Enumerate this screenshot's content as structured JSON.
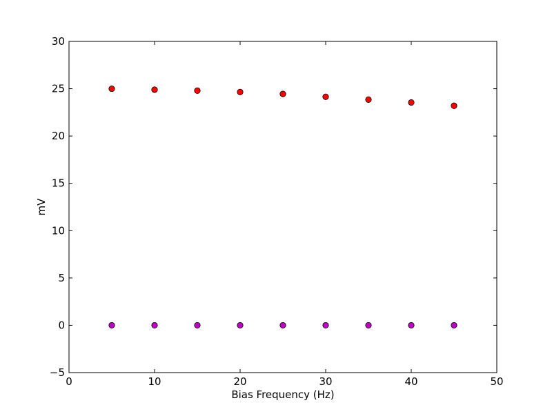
{
  "chart_data": {
    "type": "scatter",
    "title": "",
    "xlabel": "Bias Frequency (Hz)",
    "ylabel": "mV",
    "xlim": [
      0,
      50
    ],
    "ylim": [
      -5,
      30
    ],
    "xticks": [
      0,
      10,
      20,
      30,
      40,
      50
    ],
    "yticks": [
      -5,
      0,
      5,
      10,
      15,
      20,
      25,
      30
    ],
    "x_tick_labels": [
      "0",
      "10",
      "20",
      "30",
      "40",
      "50"
    ],
    "y_tick_labels": [
      "−5",
      "0",
      "5",
      "10",
      "15",
      "20",
      "25",
      "30"
    ],
    "grid": false,
    "legend": "none",
    "x": [
      5,
      10,
      15,
      20,
      25,
      30,
      35,
      40,
      45
    ],
    "series": [
      {
        "color": "#ff0000",
        "marker": "circle",
        "values": [
          25.0,
          24.9,
          24.8,
          24.65,
          24.45,
          24.15,
          23.85,
          23.55,
          23.2
        ]
      },
      {
        "color": "#c000c0",
        "marker": "circle",
        "values": [
          0,
          0,
          0,
          0,
          0,
          0,
          0,
          0,
          0
        ]
      }
    ]
  }
}
